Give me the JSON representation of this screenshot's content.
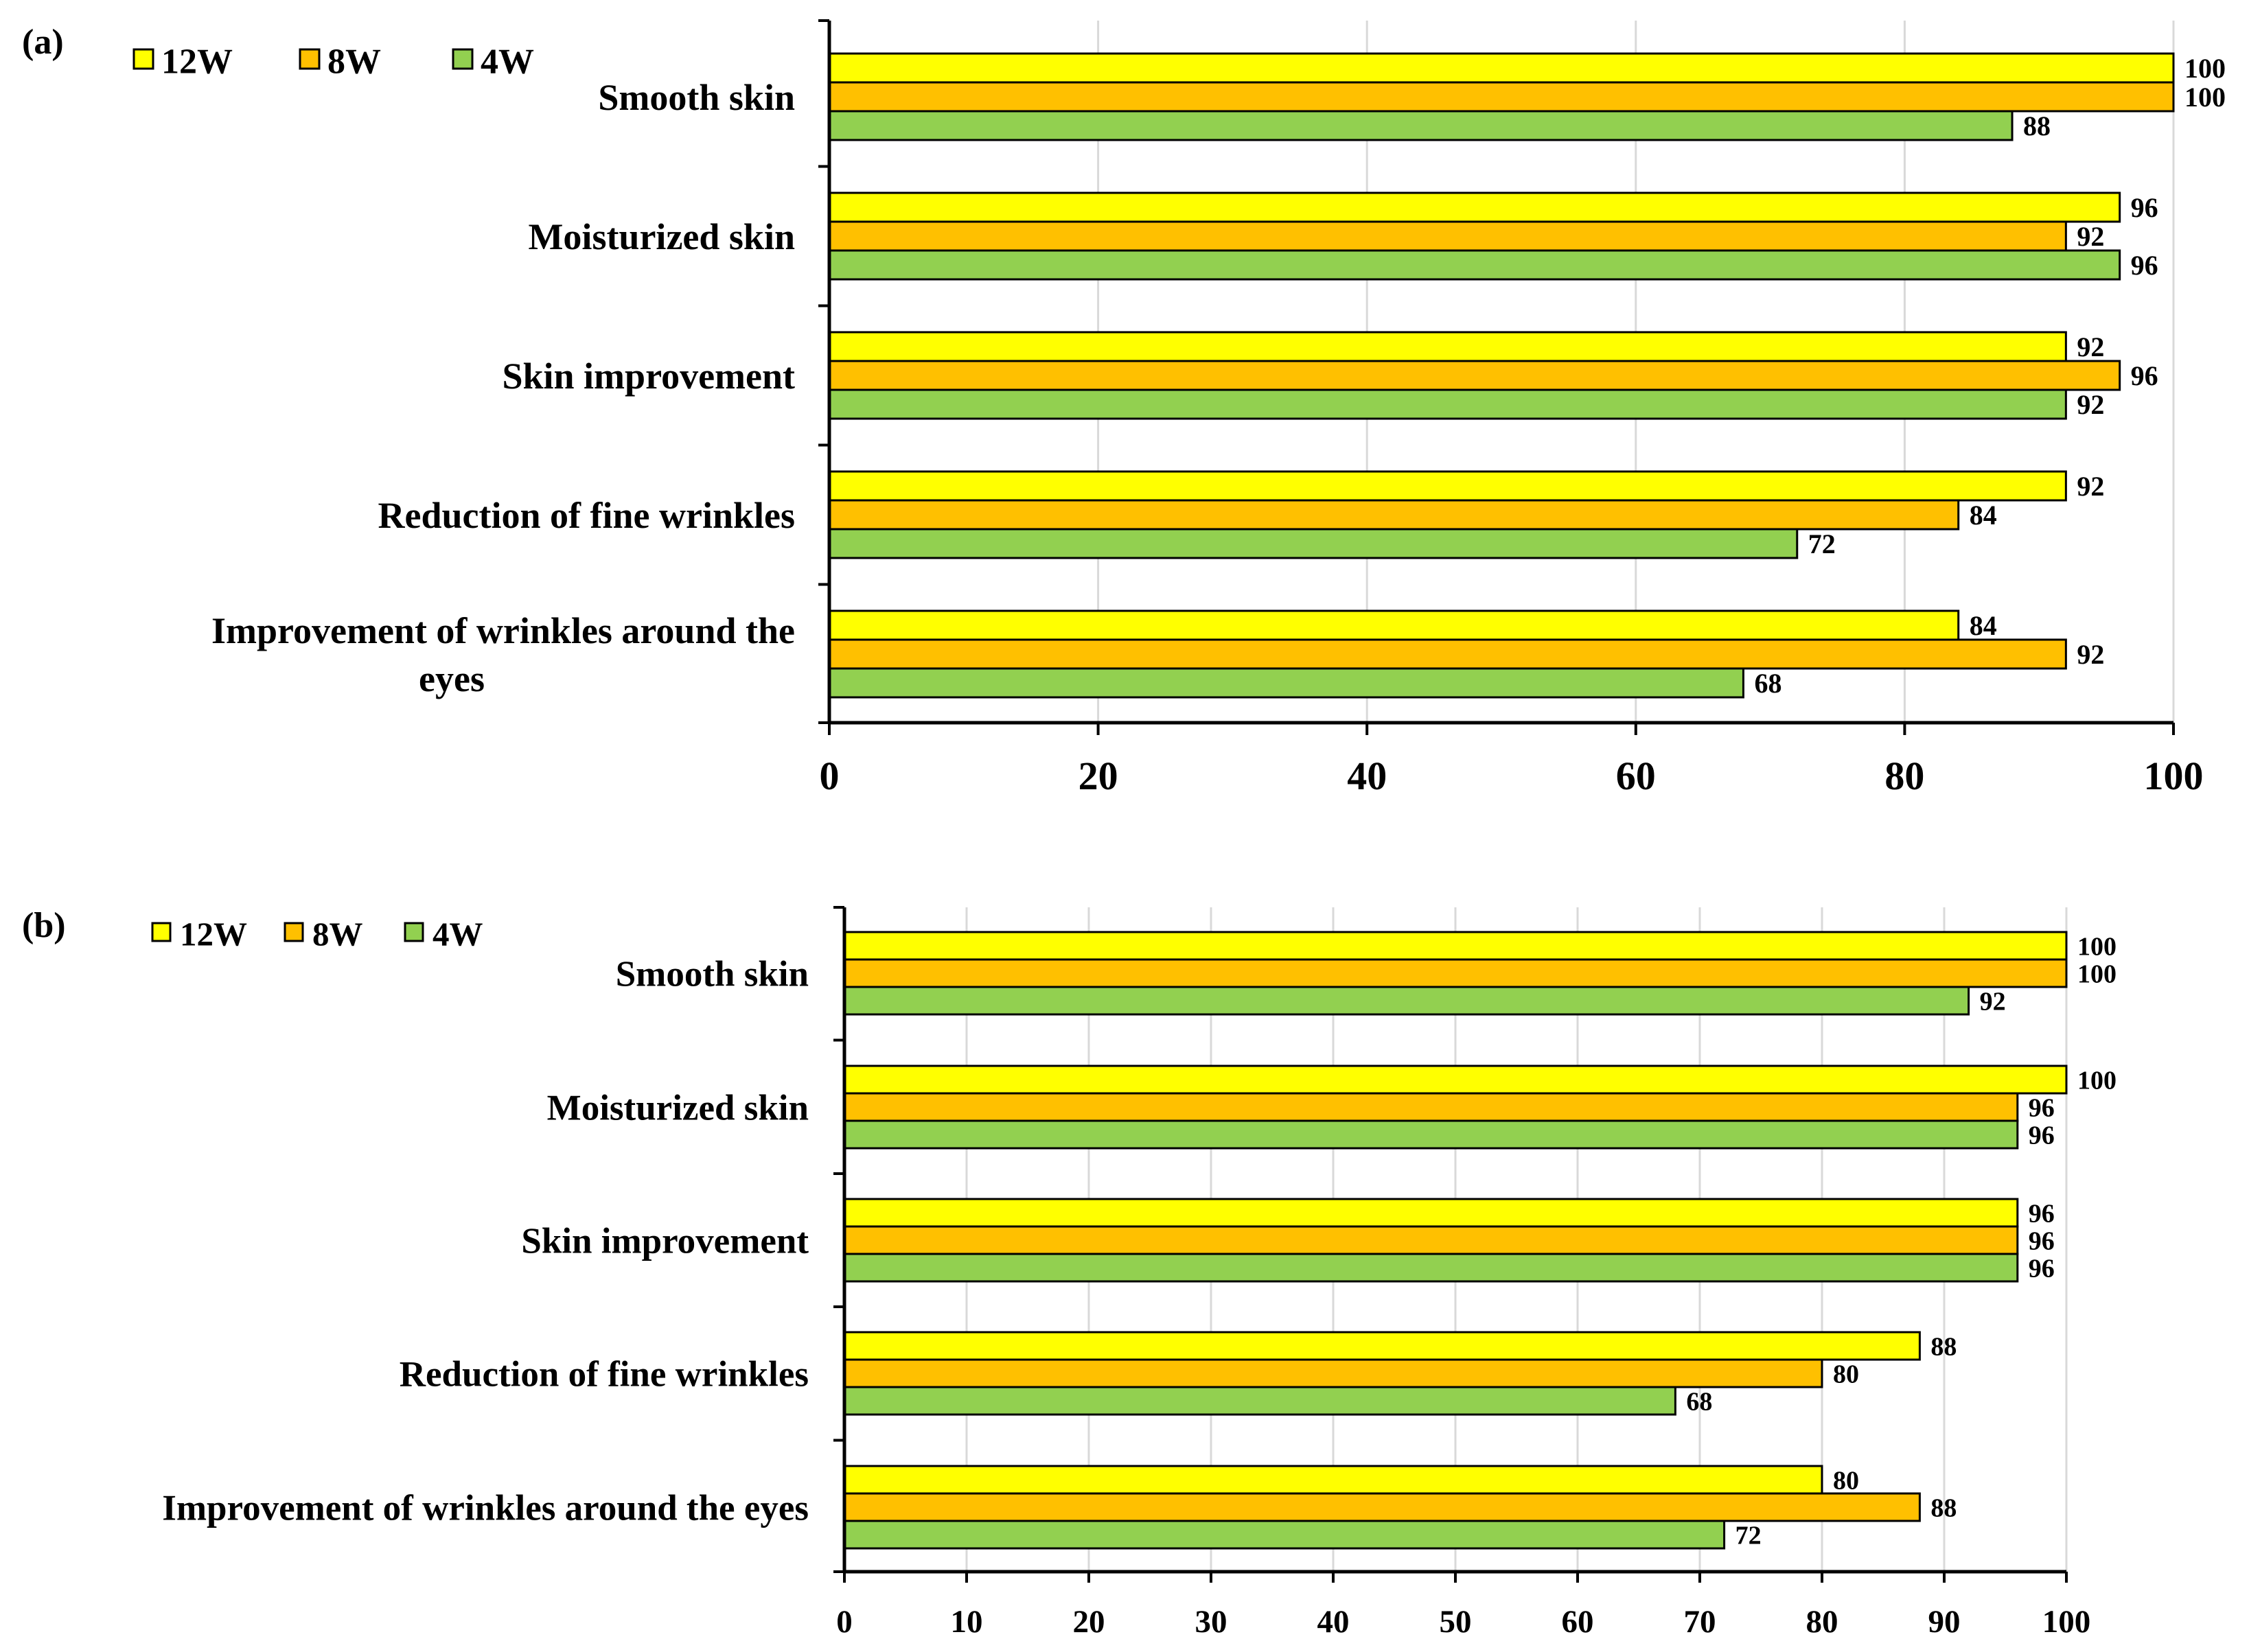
{
  "colors": {
    "12W": "#ffff00",
    "8W": "#ffc000",
    "4W": "#92d050",
    "grid": "#d9d9d9",
    "axis": "#000000",
    "bar_border": "#000000"
  },
  "chart_data": [
    {
      "type": "bar",
      "orientation": "horizontal",
      "panel_label": "(a)",
      "categories": [
        "Smooth skin",
        "Moisturized skin",
        "Skin improvement",
        "Reduction of fine wrinkles",
        "Improvement of wrinkles around the eyes"
      ],
      "category_display_lines": [
        [
          "Smooth skin"
        ],
        [
          "Moisturized skin"
        ],
        [
          "Skin improvement"
        ],
        [
          "Reduction of fine wrinkles"
        ],
        [
          "Improvement of wrinkles around the",
          "eyes"
        ]
      ],
      "series": [
        {
          "name": "12W",
          "values": [
            100,
            96,
            92,
            92,
            84
          ]
        },
        {
          "name": "8W",
          "values": [
            100,
            92,
            96,
            84,
            92
          ]
        },
        {
          "name": "4W",
          "values": [
            88,
            96,
            92,
            72,
            68
          ]
        }
      ],
      "legend": [
        "12W",
        "8W",
        "4W"
      ],
      "xlim": [
        0,
        100
      ],
      "xticks": [
        0,
        20,
        40,
        60,
        80,
        100
      ],
      "grid": true,
      "title": "",
      "xlabel": "",
      "ylabel": ""
    },
    {
      "type": "bar",
      "orientation": "horizontal",
      "panel_label": "(b)",
      "categories": [
        "Smooth skin",
        "Moisturized skin",
        "Skin improvement",
        "Reduction of fine wrinkles",
        "Improvement of wrinkles around the eyes"
      ],
      "category_display_lines": [
        [
          "Smooth skin"
        ],
        [
          "Moisturized skin"
        ],
        [
          "Skin improvement"
        ],
        [
          "Reduction of fine wrinkles"
        ],
        [
          "Improvement of wrinkles around the eyes"
        ]
      ],
      "series": [
        {
          "name": "12W",
          "values": [
            100,
            100,
            96,
            88,
            80
          ]
        },
        {
          "name": "8W",
          "values": [
            100,
            96,
            96,
            80,
            88
          ]
        },
        {
          "name": "4W",
          "values": [
            92,
            96,
            96,
            68,
            72
          ]
        }
      ],
      "legend": [
        "12W",
        "8W",
        "4W"
      ],
      "xlim": [
        0,
        100
      ],
      "xticks": [
        0,
        10,
        20,
        30,
        40,
        50,
        60,
        70,
        80,
        90,
        100
      ],
      "grid": true,
      "title": "",
      "xlabel": "",
      "ylabel": ""
    }
  ]
}
